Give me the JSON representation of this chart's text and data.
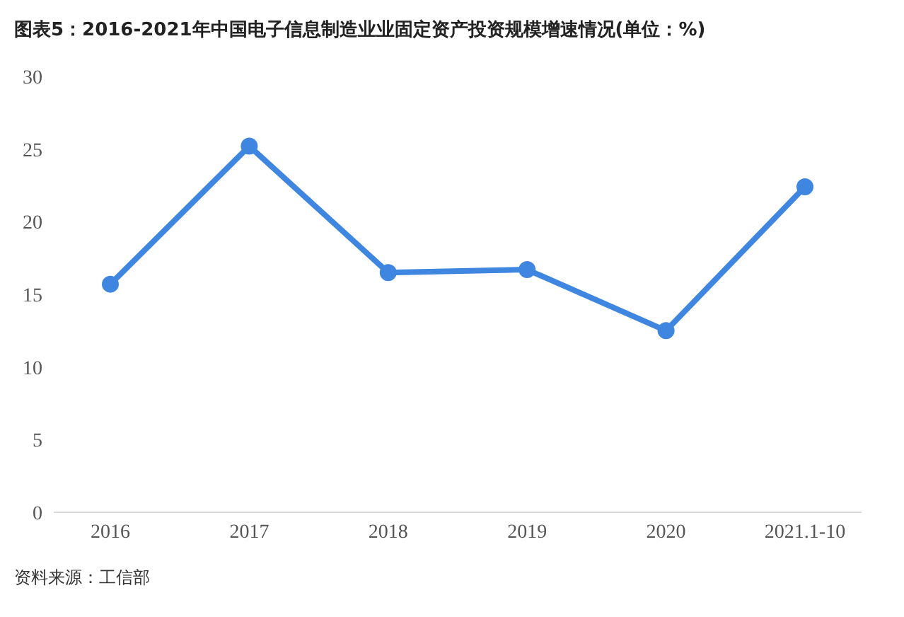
{
  "chart_data": {
    "type": "line",
    "title": "图表5：2016-2021年中国电子信息制造业业固定资产投资规模增速情况(单位：%)",
    "categories": [
      "2016",
      "2017",
      "2018",
      "2019",
      "2020",
      "2021.1-10"
    ],
    "series": [
      {
        "color": "#3f86e0",
        "values": [
          15.7,
          25.2,
          16.5,
          16.7,
          12.5,
          22.4
        ]
      }
    ],
    "ylim": [
      0,
      30
    ],
    "yticks": [
      0,
      5,
      10,
      15,
      20,
      25,
      30
    ],
    "grid": false,
    "marker": "circle",
    "line_style": "solid",
    "annotations": [
      "资料来源：工信部"
    ]
  }
}
